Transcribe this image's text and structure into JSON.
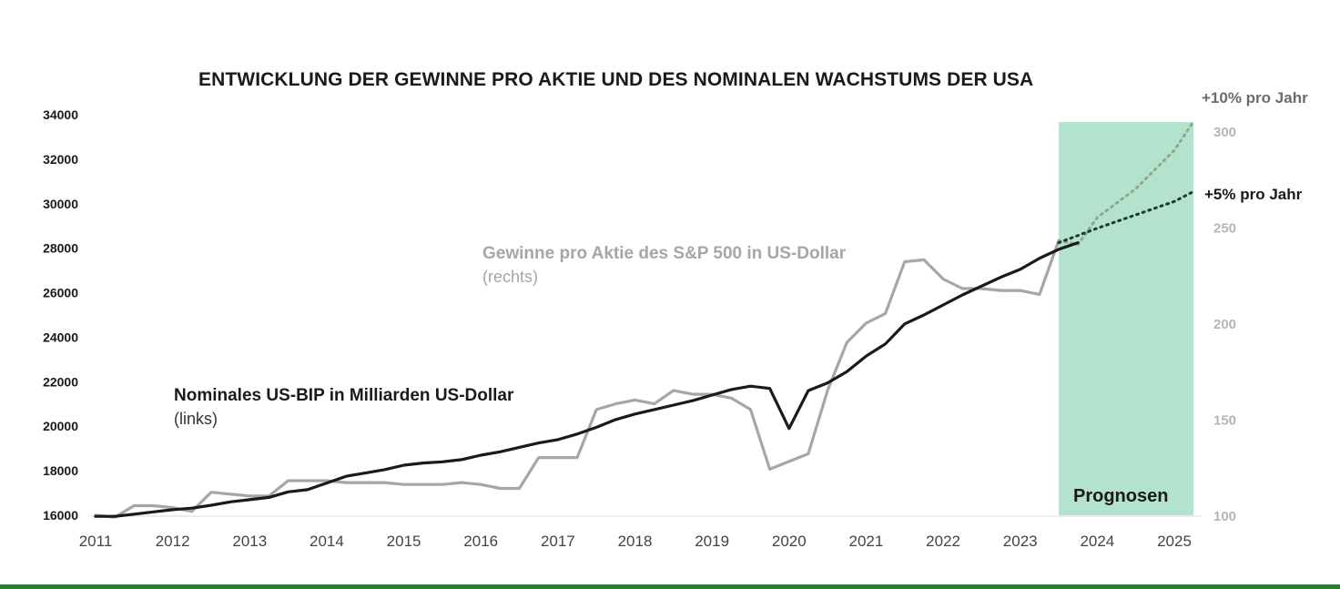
{
  "colors": {
    "gdp_line": "#1a1a1a",
    "eps_line": "#a6a6a6",
    "forecast_band": "#b3e3cc",
    "forecast_10": "#8ca88f",
    "forecast_5": "#1f3a26",
    "bottom_bar": "#2e7d32"
  },
  "chart_data": {
    "type": "line",
    "title": "ENTWICKLUNG DER GEWINNE PRO AKTIE UND DES NOMINALEN WACHSTUMS DER USA",
    "x_ticks": [
      "2011",
      "2012",
      "2013",
      "2014",
      "2015",
      "2016",
      "2017",
      "2018",
      "2019",
      "2020",
      "2021",
      "2022",
      "2023",
      "2024",
      "2025"
    ],
    "y_left": {
      "min": 16000,
      "max": 34000,
      "ticks": [
        "16000",
        "18000",
        "20000",
        "22000",
        "24000",
        "26000",
        "28000",
        "30000",
        "32000",
        "34000"
      ]
    },
    "y_right": {
      "min": 100,
      "max": 300,
      "ticks": [
        "100",
        "150",
        "200",
        "250",
        "300"
      ]
    },
    "annotations": {
      "gdp_name": "Nominales US-BIP in Milliarden US-Dollar",
      "gdp_side": "(links)",
      "eps_name": "Gewinne pro Aktie des S&P 500 in US-Dollar",
      "eps_side": "(rechts)",
      "forecast_10": "+10% pro Jahr",
      "forecast_5": "+5% pro Jahr",
      "forecast_band": "Prognosen"
    },
    "forecast_band": {
      "x_start": 2023.5,
      "x_end": 2025.25
    },
    "series": [
      {
        "name": "Nominales US-BIP in Milliarden US-Dollar",
        "axis": "left",
        "points": [
          [
            2011.0,
            15950
          ],
          [
            2011.25,
            15950
          ],
          [
            2011.5,
            16050
          ],
          [
            2011.75,
            16150
          ],
          [
            2012.0,
            16250
          ],
          [
            2012.25,
            16320
          ],
          [
            2012.5,
            16450
          ],
          [
            2012.75,
            16600
          ],
          [
            2013.0,
            16700
          ],
          [
            2013.25,
            16800
          ],
          [
            2013.5,
            17050
          ],
          [
            2013.75,
            17150
          ],
          [
            2014.0,
            17450
          ],
          [
            2014.25,
            17750
          ],
          [
            2014.5,
            17900
          ],
          [
            2014.75,
            18050
          ],
          [
            2015.0,
            18250
          ],
          [
            2015.25,
            18350
          ],
          [
            2015.5,
            18400
          ],
          [
            2015.75,
            18500
          ],
          [
            2016.0,
            18700
          ],
          [
            2016.25,
            18850
          ],
          [
            2016.5,
            19050
          ],
          [
            2016.75,
            19250
          ],
          [
            2017.0,
            19400
          ],
          [
            2017.25,
            19650
          ],
          [
            2017.5,
            19950
          ],
          [
            2017.75,
            20300
          ],
          [
            2018.0,
            20550
          ],
          [
            2018.25,
            20750
          ],
          [
            2018.5,
            20950
          ],
          [
            2018.75,
            21150
          ],
          [
            2019.0,
            21400
          ],
          [
            2019.25,
            21650
          ],
          [
            2019.5,
            21800
          ],
          [
            2019.75,
            21700
          ],
          [
            2020.0,
            19900
          ],
          [
            2020.25,
            21600
          ],
          [
            2020.5,
            21950
          ],
          [
            2020.75,
            22450
          ],
          [
            2021.0,
            23150
          ],
          [
            2021.25,
            23700
          ],
          [
            2021.5,
            24600
          ],
          [
            2021.75,
            25000
          ],
          [
            2022.0,
            25450
          ],
          [
            2022.25,
            25900
          ],
          [
            2022.5,
            26300
          ],
          [
            2022.75,
            26700
          ],
          [
            2023.0,
            27050
          ],
          [
            2023.25,
            27550
          ],
          [
            2023.5,
            27950
          ],
          [
            2023.75,
            28250
          ]
        ]
      },
      {
        "name": "Gewinne pro Aktie des S&P 500 in US-Dollar",
        "axis": "right",
        "points": [
          [
            2011.0,
            100
          ],
          [
            2011.25,
            99
          ],
          [
            2011.5,
            105
          ],
          [
            2011.75,
            105
          ],
          [
            2012.0,
            104
          ],
          [
            2012.25,
            102
          ],
          [
            2012.5,
            112
          ],
          [
            2012.75,
            111
          ],
          [
            2013.0,
            110
          ],
          [
            2013.25,
            110
          ],
          [
            2013.5,
            118
          ],
          [
            2013.75,
            118
          ],
          [
            2014.0,
            118
          ],
          [
            2014.25,
            117
          ],
          [
            2014.5,
            117
          ],
          [
            2014.75,
            117
          ],
          [
            2015.0,
            116
          ],
          [
            2015.25,
            116
          ],
          [
            2015.5,
            116
          ],
          [
            2015.75,
            117
          ],
          [
            2016.0,
            116
          ],
          [
            2016.25,
            114
          ],
          [
            2016.5,
            114
          ],
          [
            2016.75,
            130
          ],
          [
            2017.0,
            130
          ],
          [
            2017.25,
            130
          ],
          [
            2017.5,
            155
          ],
          [
            2017.75,
            158
          ],
          [
            2018.0,
            160
          ],
          [
            2018.25,
            158
          ],
          [
            2018.5,
            165
          ],
          [
            2018.75,
            163
          ],
          [
            2019.0,
            163
          ],
          [
            2019.25,
            161
          ],
          [
            2019.5,
            155
          ],
          [
            2019.75,
            124
          ],
          [
            2020.0,
            128
          ],
          [
            2020.25,
            132
          ],
          [
            2020.5,
            165
          ],
          [
            2020.75,
            190
          ],
          [
            2021.0,
            200
          ],
          [
            2021.25,
            205
          ],
          [
            2021.5,
            232
          ],
          [
            2021.75,
            233
          ],
          [
            2022.0,
            223
          ],
          [
            2022.25,
            218
          ],
          [
            2022.5,
            218
          ],
          [
            2022.75,
            217
          ],
          [
            2023.0,
            217
          ],
          [
            2023.25,
            215
          ],
          [
            2023.5,
            243
          ]
        ]
      },
      {
        "name": "+10% pro Jahr",
        "axis": "right",
        "style": "dotted",
        "points": [
          [
            2023.5,
            243
          ],
          [
            2023.75,
            241
          ],
          [
            2024.0,
            255
          ],
          [
            2024.5,
            270
          ],
          [
            2025.0,
            290
          ],
          [
            2025.25,
            305
          ]
        ]
      },
      {
        "name": "+5% pro Jahr",
        "axis": "left",
        "style": "dotted",
        "points": [
          [
            2023.5,
            28250
          ],
          [
            2024.0,
            28900
          ],
          [
            2024.5,
            29500
          ],
          [
            2025.0,
            30100
          ],
          [
            2025.25,
            30550
          ]
        ]
      }
    ]
  }
}
